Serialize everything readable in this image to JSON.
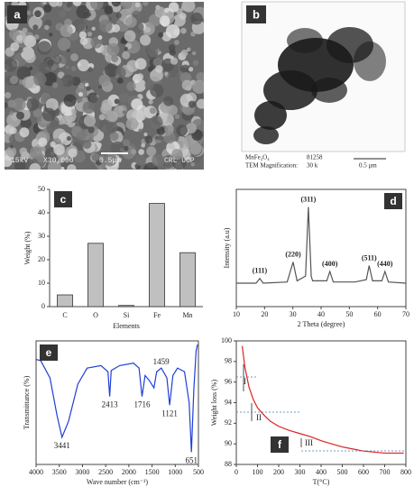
{
  "images": [
    {
      "panel_label": "a",
      "captions": [
        "15kV",
        "X30,000",
        "0.5μm",
        "CRL UOP"
      ]
    },
    {
      "panel_label": "b",
      "captions": [
        "MnFe₂O₄",
        "81258",
        "TEM Magnification:",
        "30 k",
        "0.5 μm"
      ]
    }
  ],
  "chart_data": [
    {
      "type": "bar",
      "panel_label": "c",
      "xlabel": "Elements",
      "ylabel": "Weight (%)",
      "categories": [
        "C",
        "O",
        "Si",
        "Fe",
        "Mn"
      ],
      "values": [
        5,
        27,
        0.5,
        44,
        23
      ],
      "color": "#c0c0c0",
      "ylim": [
        0,
        50
      ],
      "yticks": [
        0,
        10,
        20,
        30,
        40,
        50
      ]
    },
    {
      "type": "line",
      "panel_label": "d",
      "xlabel": "2 Theta (degree)",
      "ylabel": "Intensity (a.u)",
      "color": "#555555",
      "xlim": [
        10,
        70
      ],
      "xticks": [
        10,
        20,
        30,
        40,
        50,
        60,
        70
      ],
      "ylim": [
        0,
        100
      ],
      "x": [
        10,
        17,
        18.3,
        19.5,
        28,
        30.1,
        31.5,
        34.5,
        35.5,
        36.5,
        37,
        42,
        43.1,
        44.3,
        52,
        56,
        57,
        58.2,
        61.5,
        62.6,
        63.8,
        70
      ],
      "values": [
        20,
        20,
        24,
        20,
        21,
        38,
        22,
        26,
        85,
        26,
        22,
        22,
        30,
        21,
        21,
        23,
        35,
        22,
        22,
        30,
        21,
        20
      ],
      "peak_labels": [
        "(111)",
        "(220)",
        "(311)",
        "(400)",
        "(511)",
        "(440)"
      ]
    },
    {
      "type": "line",
      "panel_label": "e",
      "xlabel": "Wave number (cm⁻¹)",
      "ylabel": "Transmittance (%)",
      "color": "#1f3fd6",
      "xlim": [
        4000,
        500
      ],
      "xticks": [
        4000,
        3500,
        3000,
        2500,
        2000,
        1500,
        1000,
        500
      ],
      "ylim": [
        0,
        100
      ],
      "x": [
        4000,
        3900,
        3700,
        3550,
        3441,
        3300,
        3100,
        2900,
        2600,
        2450,
        2413,
        2380,
        2200,
        1900,
        1780,
        1716,
        1650,
        1560,
        1459,
        1400,
        1300,
        1180,
        1121,
        1050,
        950,
        800,
        700,
        651,
        600,
        550,
        520
      ],
      "values": [
        85,
        84,
        70,
        40,
        22,
        35,
        65,
        78,
        80,
        75,
        55,
        76,
        80,
        82,
        78,
        55,
        72,
        68,
        62,
        75,
        78,
        70,
        48,
        72,
        78,
        75,
        50,
        10,
        60,
        92,
        97
      ],
      "peak_labels": [
        3441,
        2413,
        1716,
        1459,
        1121,
        651
      ]
    },
    {
      "type": "line",
      "panel_label": "f",
      "xlabel": "T(°C)",
      "ylabel": "Weight loss (%)",
      "color": "#e02020",
      "xlim": [
        0,
        800
      ],
      "xticks": [
        0,
        100,
        200,
        300,
        400,
        500,
        600,
        700,
        800
      ],
      "ylim": [
        88,
        100
      ],
      "yticks": [
        88,
        90,
        92,
        94,
        96,
        98,
        100
      ],
      "x": [
        28,
        40,
        60,
        80,
        100,
        130,
        160,
        200,
        250,
        300,
        350,
        400,
        450,
        500,
        550,
        600,
        650,
        700,
        750,
        790
      ],
      "values": [
        99.5,
        97.5,
        95.5,
        94.3,
        93.5,
        92.8,
        92.2,
        91.7,
        91.3,
        91,
        90.7,
        90.3,
        90,
        89.7,
        89.5,
        89.3,
        89.2,
        89.1,
        89.1,
        89.1
      ],
      "stage_labels": [
        "I",
        "II",
        "III"
      ]
    }
  ]
}
